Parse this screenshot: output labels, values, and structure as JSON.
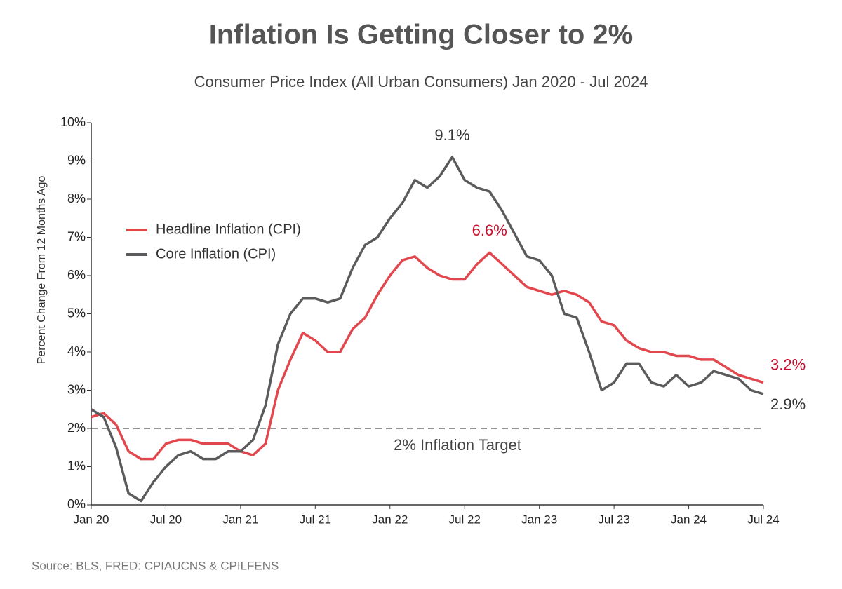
{
  "chart_data": {
    "type": "line",
    "title": "Inflation Is Getting Closer to 2%",
    "subtitle": "Consumer Price Index (All Urban Consumers) Jan 2020 - Jul 2024",
    "y_label": "Percent Change From 12 Months Ago",
    "source": "Source: BLS, FRED: CPIAUCNS & CPILFENS",
    "categories": [
      "Jan 20",
      null,
      null,
      null,
      null,
      null,
      "Jul 20",
      null,
      null,
      null,
      null,
      null,
      "Jan 21",
      null,
      null,
      null,
      null,
      null,
      "Jul 21",
      null,
      null,
      null,
      null,
      null,
      "Jan 22",
      null,
      null,
      null,
      null,
      null,
      "Jul 22",
      null,
      null,
      null,
      null,
      null,
      "Jan 23",
      null,
      null,
      null,
      null,
      null,
      "Jul 23",
      null,
      null,
      null,
      null,
      null,
      "Jan 24",
      null,
      null,
      null,
      null,
      null,
      "Jul 24"
    ],
    "series": [
      {
        "name": "Headline Inflation (CPI)",
        "color": "#e2474d",
        "values": [
          2.3,
          2.4,
          2.1,
          1.4,
          1.2,
          1.2,
          1.6,
          1.7,
          1.7,
          1.6,
          1.6,
          1.6,
          1.4,
          1.3,
          1.6,
          3.0,
          3.8,
          4.5,
          4.3,
          4.0,
          4.0,
          4.6,
          4.9,
          5.5,
          6.0,
          6.4,
          6.5,
          6.2,
          6.0,
          5.9,
          5.9,
          6.3,
          6.6,
          6.3,
          6.0,
          5.7,
          5.6,
          5.5,
          5.6,
          5.5,
          5.3,
          4.8,
          4.7,
          4.3,
          4.1,
          4.0,
          4.0,
          3.9,
          3.9,
          3.8,
          3.8,
          3.6,
          3.4,
          3.3,
          3.2
        ],
        "value_labels": [
          null,
          null,
          null,
          null,
          null,
          null,
          null,
          null,
          null,
          null,
          null,
          null,
          null,
          null,
          null,
          null,
          null,
          null,
          null,
          null,
          null,
          null,
          null,
          null,
          null,
          null,
          null,
          null,
          null,
          null,
          null,
          null,
          "6.6%",
          null,
          null,
          null,
          null,
          null,
          null,
          null,
          null,
          null,
          null,
          null,
          null,
          null,
          null,
          null,
          null,
          null,
          null,
          null,
          null,
          null,
          "3.2%"
        ]
      },
      {
        "name": "Core Inflation (CPI)",
        "color": "#5b5b5d",
        "values": [
          2.5,
          2.3,
          1.5,
          0.3,
          0.1,
          0.6,
          1.0,
          1.3,
          1.4,
          1.2,
          1.2,
          1.4,
          1.4,
          1.7,
          2.6,
          4.2,
          5.0,
          5.4,
          5.4,
          5.3,
          5.4,
          6.2,
          6.8,
          7.0,
          7.5,
          7.9,
          8.5,
          8.3,
          8.6,
          9.1,
          8.5,
          8.3,
          8.2,
          7.7,
          7.1,
          6.5,
          6.4,
          6.0,
          5.0,
          4.9,
          4.0,
          3.0,
          3.2,
          3.7,
          3.7,
          3.2,
          3.1,
          3.4,
          3.1,
          3.2,
          3.5,
          3.4,
          3.3,
          3.0,
          2.9
        ],
        "value_labels": [
          null,
          null,
          null,
          null,
          null,
          null,
          null,
          null,
          null,
          null,
          null,
          null,
          null,
          null,
          null,
          null,
          null,
          null,
          null,
          null,
          null,
          null,
          null,
          null,
          null,
          null,
          null,
          null,
          null,
          "9.1%",
          null,
          null,
          null,
          null,
          null,
          null,
          null,
          null,
          null,
          null,
          null,
          null,
          null,
          null,
          null,
          null,
          null,
          null,
          null,
          null,
          null,
          null,
          null,
          null,
          "2.9%"
        ]
      }
    ],
    "ylim": [
      0,
      10
    ],
    "yticks": [
      {
        "value": 0,
        "label": "0%"
      },
      {
        "value": 1,
        "label": "1%"
      },
      {
        "value": 2,
        "label": "2%"
      },
      {
        "value": 3,
        "label": "3%"
      },
      {
        "value": 4,
        "label": "4%"
      },
      {
        "value": 5,
        "label": "5%"
      },
      {
        "value": 6,
        "label": "6%"
      },
      {
        "value": 7,
        "label": "7%"
      },
      {
        "value": 8,
        "label": "8%"
      },
      {
        "value": 9,
        "label": "9%"
      },
      {
        "value": 10,
        "label": "10%"
      }
    ],
    "reference_line": {
      "value": 2,
      "label": "2% Inflation Target"
    },
    "grid": false,
    "legend": "upper-left"
  }
}
